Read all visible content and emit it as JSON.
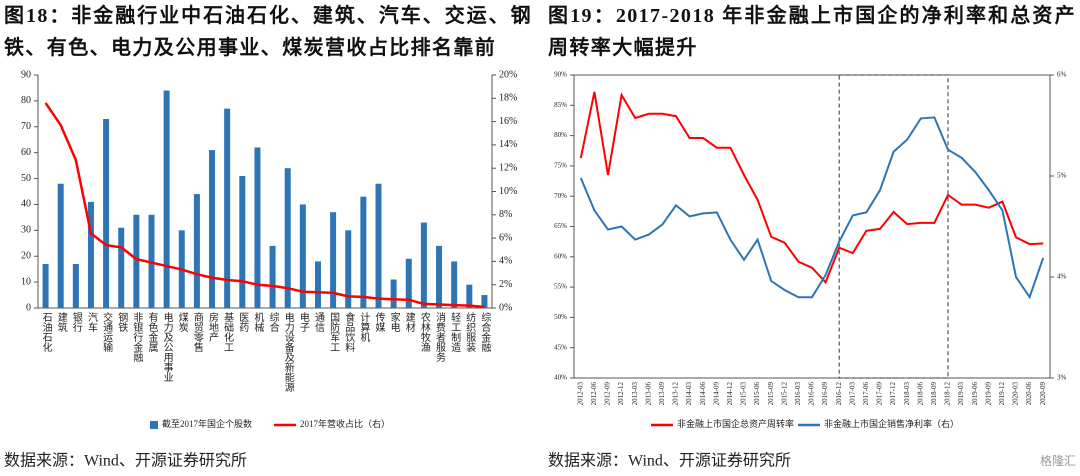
{
  "chart_data": [
    {
      "type": "bar",
      "title": "图18：非金融行业中石油石化、建筑、汽车、交运、钢铁、有色、电力及公用事业、煤炭营收占比排名靠前",
      "categories": [
        "石油石化",
        "建筑",
        "银行",
        "汽车",
        "交通运输",
        "钢铁",
        "非银行金融",
        "有色金属",
        "电力及公用事业",
        "煤炭",
        "商贸零售",
        "房地产",
        "基础化工",
        "医药",
        "机械",
        "综合",
        "电力设备及新能源",
        "电子",
        "通信",
        "国防军工",
        "食品饮料",
        "计算机",
        "传媒",
        "家电",
        "建材",
        "农林牧渔",
        "消费者服务",
        "轻工制造",
        "纺织服装",
        "综合金融"
      ],
      "series": [
        {
          "name": "截至2017年国企个股数",
          "color": "#2e75b6",
          "type": "bar",
          "values": [
            17,
            48,
            17,
            41,
            73,
            31,
            36,
            36,
            84,
            30,
            44,
            61,
            77,
            51,
            62,
            24,
            54,
            40,
            18,
            37,
            30,
            43,
            48,
            11,
            19,
            33,
            24,
            18,
            9,
            5
          ]
        },
        {
          "name": "2017年营收占比（右）",
          "color": "#ff0000",
          "type": "line",
          "axis": "y2",
          "values": [
            17.6,
            15.7,
            12.7,
            6.4,
            5.4,
            5.2,
            4.2,
            3.9,
            3.6,
            3.3,
            2.9,
            2.6,
            2.4,
            2.3,
            2.0,
            1.9,
            1.7,
            1.4,
            1.35,
            1.3,
            1.0,
            0.95,
            0.8,
            0.75,
            0.7,
            0.35,
            0.3,
            0.25,
            0.2,
            0.1
          ]
        }
      ],
      "ylim": [
        0,
        90
      ],
      "yticks": [
        0,
        10,
        20,
        30,
        40,
        50,
        60,
        70,
        80,
        90
      ],
      "y2lim": [
        0,
        20
      ],
      "y2ticks": [
        {
          "value": 0,
          "label": "0%"
        },
        {
          "value": 2,
          "label": "2%"
        },
        {
          "value": 4,
          "label": "4%"
        },
        {
          "value": 6,
          "label": "6%"
        },
        {
          "value": 8,
          "label": "8%"
        },
        {
          "value": 10,
          "label": "10%"
        },
        {
          "value": 12,
          "label": "12%"
        },
        {
          "value": 14,
          "label": "14%"
        },
        {
          "value": 16,
          "label": "16%"
        },
        {
          "value": 18,
          "label": "18%"
        },
        {
          "value": 20,
          "label": "20%"
        }
      ],
      "source": "数据来源：Wind、开源证券研究所"
    },
    {
      "type": "line",
      "title": "图19：2017-2018 年非金融上市国企的净利率和总资产周转率大幅提升",
      "x": [
        "2012-03",
        "2012-06",
        "2012-09",
        "2012-12",
        "2013-03",
        "2013-06",
        "2013-09",
        "2013-12",
        "2014-03",
        "2014-06",
        "2014-09",
        "2014-12",
        "2015-03",
        "2015-06",
        "2015-09",
        "2015-12",
        "2016-03",
        "2016-06",
        "2016-09",
        "2016-12",
        "2017-03",
        "2017-06",
        "2017-09",
        "2017-12",
        "2018-03",
        "2018-06",
        "2018-09",
        "2018-12",
        "2019-03",
        "2019-06",
        "2019-09",
        "2019-12",
        "2020-03",
        "2020-06",
        "2020-09"
      ],
      "series": [
        {
          "name": "非金融上市国企总资产周转率",
          "color": "#ff0000",
          "values": [
            76.3,
            87.2,
            73.5,
            86.7,
            82.9,
            83.6,
            83.6,
            83.2,
            79.6,
            79.6,
            78.0,
            78.0,
            73.5,
            69.4,
            63.3,
            62.3,
            59.2,
            58.2,
            55.8,
            61.5,
            60.6,
            64.3,
            64.6,
            67.4,
            65.4,
            65.6,
            65.6,
            70.2,
            68.6,
            68.6,
            68.1,
            69.1,
            63.2,
            62.1,
            62.2
          ]
        },
        {
          "name": "非金融上市国企销售净利率（右）",
          "color": "#2e75b6",
          "axis": "y2",
          "values": [
            4.98,
            4.66,
            4.47,
            4.5,
            4.37,
            4.42,
            4.52,
            4.71,
            4.6,
            4.63,
            4.64,
            4.37,
            4.17,
            4.37,
            3.96,
            3.87,
            3.8,
            3.8,
            4.02,
            4.35,
            4.61,
            4.64,
            4.86,
            5.24,
            5.36,
            5.57,
            5.58,
            5.26,
            5.18,
            5.04,
            4.86,
            4.66,
            4.0,
            3.8,
            4.19
          ]
        }
      ],
      "ylim": [
        40,
        90
      ],
      "yticks": [
        {
          "value": 40,
          "label": "40%"
        },
        {
          "value": 45,
          "label": "45%"
        },
        {
          "value": 50,
          "label": "50%"
        },
        {
          "value": 55,
          "label": "55%"
        },
        {
          "value": 60,
          "label": "60%"
        },
        {
          "value": 65,
          "label": "65%"
        },
        {
          "value": 70,
          "label": "70%"
        },
        {
          "value": 75,
          "label": "75%"
        },
        {
          "value": 80,
          "label": "80%"
        },
        {
          "value": 85,
          "label": "85%"
        },
        {
          "value": 90,
          "label": "90%"
        }
      ],
      "y2lim": [
        3,
        6
      ],
      "y2ticks": [
        {
          "value": 3,
          "label": "3%"
        },
        {
          "value": 4,
          "label": "4%"
        },
        {
          "value": 5,
          "label": "5%"
        },
        {
          "value": 6,
          "label": "6%"
        }
      ],
      "highlight": [
        "2016-12",
        "2018-12"
      ],
      "frame": true,
      "source": "数据来源：Wind、开源证券研究所"
    }
  ],
  "watermark": "格隆汇"
}
